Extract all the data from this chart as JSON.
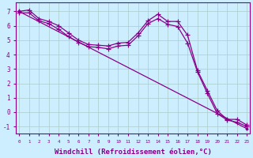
{
  "background_color": "#cceeff",
  "grid_color": "#aacccc",
  "line_color": "#880088",
  "xlabel": "Windchill (Refroidissement éolien,°C)",
  "xlabel_fontsize": 6.5,
  "xtick_labels": [
    "0",
    "1",
    "2",
    "3",
    "4",
    "5",
    "6",
    "7",
    "8",
    "9",
    "10",
    "11",
    "12",
    "13",
    "14",
    "15",
    "16",
    "17",
    "18",
    "19",
    "20",
    "21",
    "22",
    "23"
  ],
  "ylim": [
    -1.5,
    7.6
  ],
  "xlim": [
    -0.3,
    23.3
  ],
  "yticks": [
    -1,
    0,
    1,
    2,
    3,
    4,
    5,
    6,
    7
  ],
  "series1_x": [
    0,
    1,
    2,
    3,
    4,
    5,
    6,
    7,
    8,
    9,
    10,
    11,
    12,
    13,
    14,
    15,
    16,
    17,
    18,
    19,
    20,
    21,
    22,
    23
  ],
  "series1_y": [
    7.0,
    7.1,
    6.5,
    6.3,
    6.0,
    5.5,
    5.0,
    4.7,
    4.65,
    4.6,
    4.8,
    4.85,
    5.5,
    6.35,
    6.8,
    6.3,
    6.3,
    5.35,
    2.9,
    1.5,
    0.1,
    -0.5,
    -0.5,
    -0.9
  ],
  "series2_x": [
    0,
    1,
    2,
    3,
    4,
    5,
    6,
    7,
    8,
    9,
    10,
    11,
    12,
    13,
    14,
    15,
    16,
    17,
    18,
    19,
    20,
    21,
    22,
    23
  ],
  "series2_y": [
    6.9,
    6.9,
    6.35,
    6.15,
    5.75,
    5.25,
    4.85,
    4.55,
    4.5,
    4.4,
    4.6,
    4.65,
    5.3,
    6.15,
    6.5,
    6.1,
    5.95,
    4.8,
    2.8,
    1.3,
    -0.1,
    -0.55,
    -0.7,
    -1.0
  ],
  "series3_x": [
    0,
    23
  ],
  "series3_y": [
    7.0,
    -1.15
  ],
  "marker_size": 3
}
